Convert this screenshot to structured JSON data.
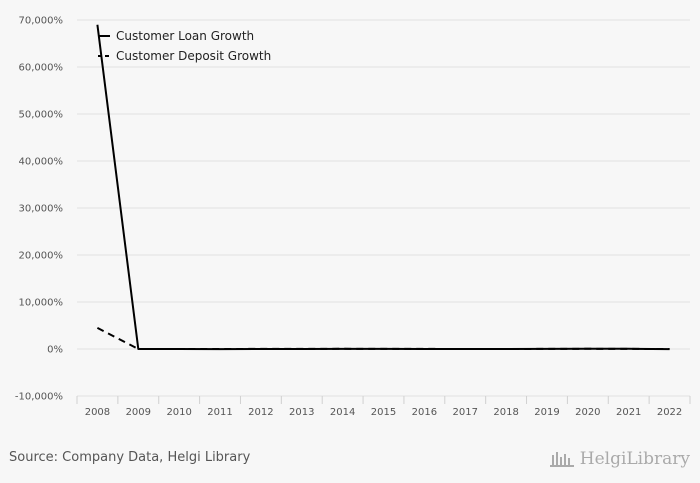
{
  "chart_data": {
    "type": "line",
    "title": "",
    "xlabel": "",
    "ylabel": "",
    "x": [
      "2008",
      "2009",
      "2010",
      "2011",
      "2012",
      "2013",
      "2014",
      "2015",
      "2016",
      "2017",
      "2018",
      "2019",
      "2020",
      "2021",
      "2022"
    ],
    "ylim": [
      -10000,
      70000
    ],
    "yticks": [
      -10000,
      0,
      10000,
      20000,
      30000,
      40000,
      50000,
      60000,
      70000
    ],
    "ytick_labels": [
      "-10,000%",
      "0%",
      "10,000%",
      "20,000%",
      "30,000%",
      "40,000%",
      "50,000%",
      "60,000%",
      "70,000%"
    ],
    "grid": true,
    "legend_position": "top-left",
    "series": [
      {
        "name": "Customer Loan Growth",
        "style": "solid",
        "color": "#000000",
        "values": [
          69000,
          0,
          0,
          -20,
          0,
          10,
          30,
          20,
          10,
          0,
          10,
          20,
          60,
          40,
          -20
        ]
      },
      {
        "name": "Customer Deposit Growth",
        "style": "dashed",
        "color": "#000000",
        "values": [
          4500,
          0,
          10,
          0,
          20,
          30,
          40,
          20,
          20,
          10,
          10,
          20,
          50,
          30,
          0
        ]
      }
    ]
  },
  "footer": {
    "source": "Source: Company Data, Helgi Library",
    "logo_text": "HelgiLibrary"
  }
}
